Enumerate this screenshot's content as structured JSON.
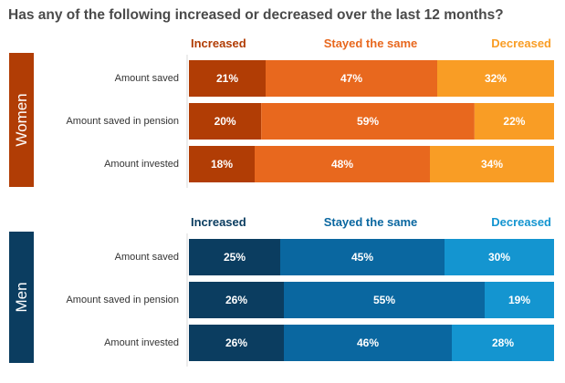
{
  "title": "Has any of the following increased or decreased over the last 12 months?",
  "colors": {
    "women": [
      "#b13d05",
      "#e8681e",
      "#f99d25"
    ],
    "men": [
      "#0b3d60",
      "#0a67a0",
      "#1495d0"
    ],
    "women_header": [
      "#b13d05",
      "#e8681e",
      "#f99d25"
    ],
    "men_header": [
      "#0b3d60",
      "#0a67a0",
      "#1495d0"
    ]
  },
  "chart_data": [
    {
      "type": "bar",
      "group": "Women",
      "stacked": true,
      "orientation": "horizontal",
      "categories": [
        "Amount saved",
        "Amount saved in pension",
        "Amount invested"
      ],
      "series": [
        {
          "name": "Increased",
          "values": [
            21,
            20,
            18
          ]
        },
        {
          "name": "Stayed the same",
          "values": [
            47,
            59,
            48
          ]
        },
        {
          "name": "Decreased",
          "values": [
            32,
            22,
            34
          ]
        }
      ],
      "value_suffix": "%"
    },
    {
      "type": "bar",
      "group": "Men",
      "stacked": true,
      "orientation": "horizontal",
      "categories": [
        "Amount saved",
        "Amount saved in pension",
        "Amount invested"
      ],
      "series": [
        {
          "name": "Increased",
          "values": [
            25,
            26,
            26
          ]
        },
        {
          "name": "Stayed the same",
          "values": [
            45,
            55,
            46
          ]
        },
        {
          "name": "Decreased",
          "values": [
            30,
            19,
            28
          ]
        }
      ],
      "value_suffix": "%"
    }
  ]
}
